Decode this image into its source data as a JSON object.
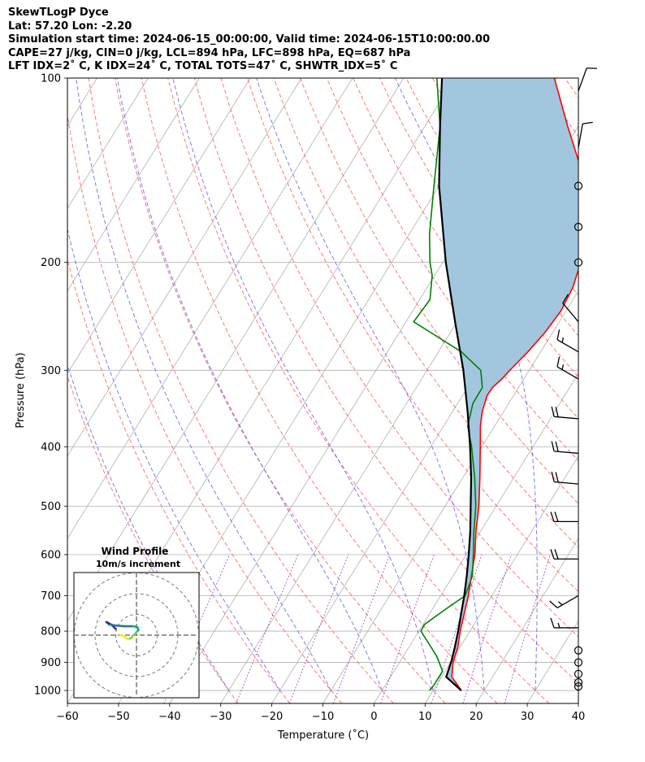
{
  "header": {
    "line1": "SkewTLogP Dyce",
    "line2": "Lat: 57.20   Lon: -2.20",
    "line3": "Simulation start time: 2024-06-15_00:00:00, Valid time: 2024-06-15T10:00:00.00",
    "line4": "CAPE=27 j/kg, CIN=0 j/kg, LCL=894 hPa, LFC=898 hPa, EQ=687 hPa",
    "line5": "LFT IDX=2˚ C, K IDX=24˚ C, TOTAL TOTS=47˚ C, SHWTR_IDX=5˚ C"
  },
  "colors": {
    "temperature": "#ff0000",
    "dewpoint": "#008000",
    "parcel": "#000000",
    "cape_fill": "#a3c6df",
    "dry_adiabat": "#ff6060",
    "moist_adiabat": "#5a5aff",
    "mixing_ratio": "#9a3fb0",
    "isotherm": "#b0b0b0"
  },
  "chart_data": {
    "type": "line",
    "title": "",
    "xlabel": "Temperature (˚C)",
    "ylabel": "Pressure (hPa)",
    "xlim": [
      -60,
      40
    ],
    "ylim": [
      1050,
      100
    ],
    "y_scale": "log",
    "x_ticks": [
      "−60",
      "−50",
      "−40",
      "−30",
      "−20",
      "−10",
      "0",
      "10",
      "20",
      "30",
      "40"
    ],
    "y_ticks": [
      "100",
      "200",
      "300",
      "400",
      "500",
      "600",
      "700",
      "800",
      "900",
      "1000"
    ],
    "grid": true,
    "series": [
      {
        "key": "temperature",
        "points": [
          [
            1000,
            15.5
          ],
          [
            950,
            12.0
          ],
          [
            900,
            10.5
          ],
          [
            850,
            9.6
          ],
          [
            800,
            8.1
          ],
          [
            750,
            6.8
          ],
          [
            700,
            5.4
          ],
          [
            650,
            3.6
          ],
          [
            600,
            1.7
          ],
          [
            550,
            -0.9
          ],
          [
            500,
            -3.4
          ],
          [
            450,
            -6.6
          ],
          [
            400,
            -10.3
          ],
          [
            370,
            -12.8
          ],
          [
            350,
            -14.2
          ],
          [
            330,
            -15.2
          ],
          [
            320,
            -15.1
          ],
          [
            310,
            -14.3
          ],
          [
            300,
            -13.8
          ],
          [
            280,
            -12.5
          ],
          [
            260,
            -11.5
          ],
          [
            240,
            -11.0
          ],
          [
            220,
            -11.5
          ],
          [
            200,
            -13.0
          ],
          [
            180,
            -16.0
          ],
          [
            160,
            -19.0
          ],
          [
            140,
            -24.5
          ],
          [
            120,
            -32.0
          ],
          [
            100,
            -40.5
          ]
        ]
      },
      {
        "key": "dewpoint",
        "points": [
          [
            1000,
            9.3
          ],
          [
            980,
            9.5
          ],
          [
            930,
            9.5
          ],
          [
            880,
            6.6
          ],
          [
            840,
            3.6
          ],
          [
            800,
            0.4
          ],
          [
            780,
            0.3
          ],
          [
            740,
            2.4
          ],
          [
            700,
            4.8
          ],
          [
            650,
            3.8
          ],
          [
            600,
            1.4
          ],
          [
            550,
            -1.3
          ],
          [
            500,
            -4.0
          ],
          [
            450,
            -7.6
          ],
          [
            400,
            -12.0
          ],
          [
            370,
            -15.3
          ],
          [
            340,
            -17.0
          ],
          [
            320,
            -17.1
          ],
          [
            300,
            -19.5
          ],
          [
            280,
            -25.5
          ],
          [
            260,
            -34.0
          ],
          [
            250,
            -38.5
          ],
          [
            230,
            -38.0
          ],
          [
            210,
            -40.5
          ],
          [
            200,
            -42.5
          ],
          [
            180,
            -46.0
          ],
          [
            150,
            -51.0
          ],
          [
            120,
            -57.0
          ],
          [
            100,
            -63.5
          ]
        ]
      },
      {
        "key": "parcel",
        "points": [
          [
            1000,
            15.5
          ],
          [
            950,
            10.9
          ],
          [
            894,
            10.0
          ],
          [
            850,
            9.0
          ],
          [
            800,
            7.7
          ],
          [
            750,
            6.2
          ],
          [
            700,
            4.6
          ],
          [
            650,
            2.7
          ],
          [
            600,
            0.5
          ],
          [
            550,
            -2.0
          ],
          [
            500,
            -5.0
          ],
          [
            450,
            -8.3
          ],
          [
            400,
            -12.3
          ],
          [
            350,
            -17.1
          ],
          [
            300,
            -22.9
          ],
          [
            250,
            -30.4
          ],
          [
            200,
            -39.4
          ],
          [
            150,
            -50.0
          ],
          [
            120,
            -57.0
          ],
          [
            100,
            -62.5
          ]
        ]
      }
    ],
    "wind_barbs": [
      {
        "p": 105,
        "speed_kt": 10,
        "dir": 20
      },
      {
        "p": 130,
        "speed_kt": 10,
        "dir": 10
      },
      {
        "p": 150,
        "speed_kt": 0,
        "dir": 0
      },
      {
        "p": 175,
        "speed_kt": 0,
        "dir": 0
      },
      {
        "p": 200,
        "speed_kt": 0,
        "dir": 0
      },
      {
        "p": 250,
        "speed_kt": 10,
        "dir": 320
      },
      {
        "p": 280,
        "speed_kt": 15,
        "dir": 300
      },
      {
        "p": 310,
        "speed_kt": 15,
        "dir": 300
      },
      {
        "p": 360,
        "speed_kt": 20,
        "dir": 275
      },
      {
        "p": 410,
        "speed_kt": 20,
        "dir": 275
      },
      {
        "p": 460,
        "speed_kt": 20,
        "dir": 275
      },
      {
        "p": 530,
        "speed_kt": 20,
        "dir": 270
      },
      {
        "p": 610,
        "speed_kt": 20,
        "dir": 270
      },
      {
        "p": 700,
        "speed_kt": 15,
        "dir": 240
      },
      {
        "p": 790,
        "speed_kt": 15,
        "dir": 270
      },
      {
        "p": 860,
        "speed_kt": 0,
        "dir": 0
      },
      {
        "p": 900,
        "speed_kt": 0,
        "dir": 0
      },
      {
        "p": 940,
        "speed_kt": 0,
        "dir": 0
      },
      {
        "p": 970,
        "speed_kt": 0,
        "dir": 0
      },
      {
        "p": 985,
        "speed_kt": 0,
        "dir": 0
      }
    ],
    "wind_profile": {
      "title": "Wind Profile",
      "subtitle": "10m/s increment",
      "rings_ms": [
        10,
        20,
        30
      ],
      "hodograph": [
        [
          -10,
          3
        ],
        [
          -12,
          5
        ],
        [
          -14.5,
          6.3
        ],
        [
          -14,
          6
        ],
        [
          -13,
          5
        ],
        [
          -12.5,
          5
        ],
        [
          -9.5,
          4.6
        ],
        [
          -6,
          4.3
        ],
        [
          -1.5,
          4.3
        ],
        [
          0.5,
          3.8
        ],
        [
          1,
          2.5
        ],
        [
          0,
          1.5
        ],
        [
          -1,
          0.3
        ],
        [
          -1.8,
          -0.3
        ],
        [
          -2.6,
          -1.5
        ],
        [
          -4,
          -1.8
        ],
        [
          -5,
          -1.5
        ],
        [
          -6,
          -0.5
        ],
        [
          -7.5,
          0
        ],
        [
          -8,
          0.2
        ]
      ]
    }
  }
}
